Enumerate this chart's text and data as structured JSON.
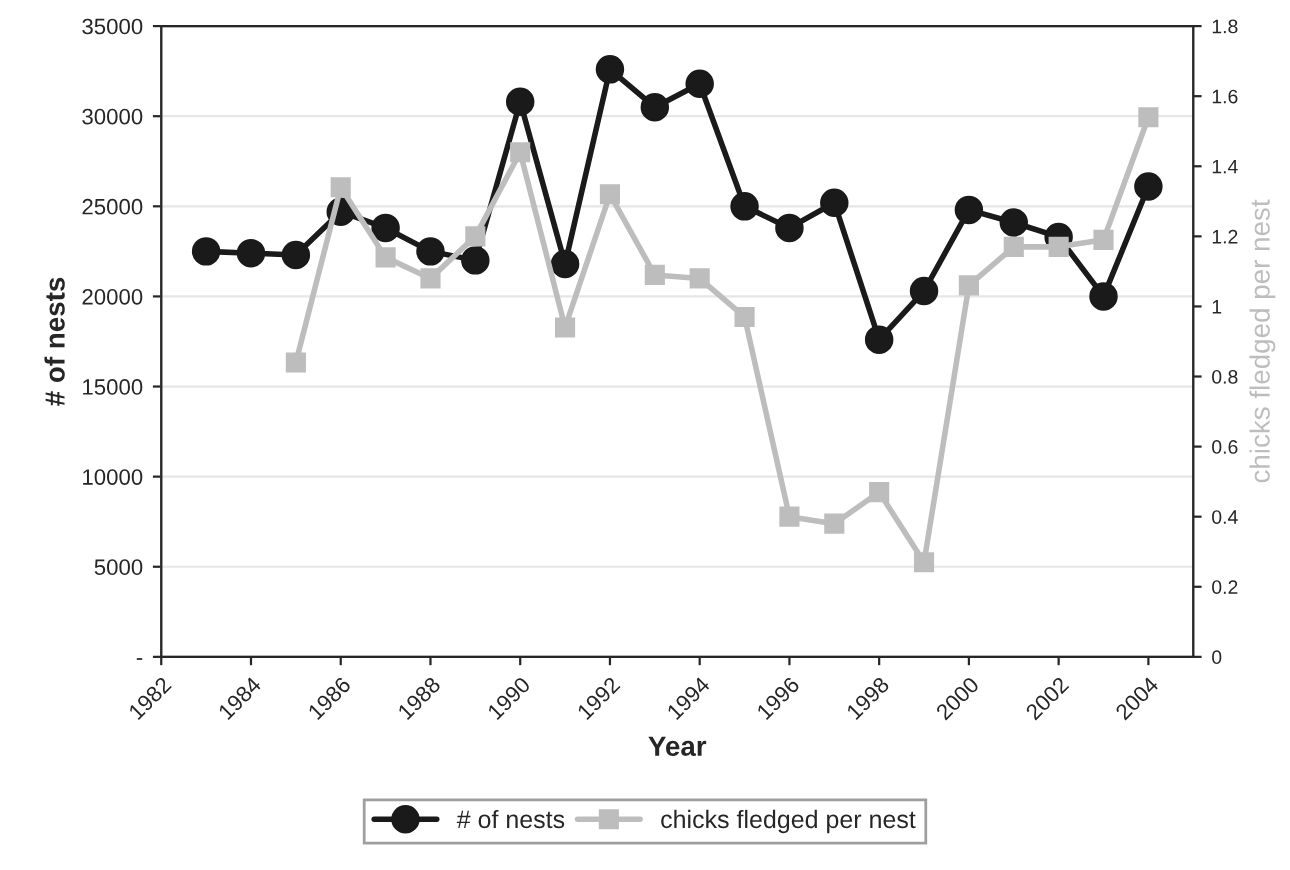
{
  "chart_data": {
    "type": "line",
    "xlabel": "Year",
    "ylabel": "# of nests",
    "y2label": "chicks fledged per nest",
    "x": [
      1983,
      1984,
      1985,
      1986,
      1987,
      1988,
      1989,
      1990,
      1991,
      1992,
      1993,
      1994,
      1995,
      1996,
      1997,
      1998,
      1999,
      2000,
      2001,
      2002,
      2003,
      2004
    ],
    "series": [
      {
        "name": "# of nests",
        "color": "#1a1a1a",
        "marker": "circle",
        "values": [
          22500,
          22400,
          22300,
          24700,
          23800,
          22500,
          22000,
          30800,
          21800,
          32600,
          30500,
          31800,
          25000,
          23800,
          25200,
          17600,
          20300,
          24800,
          24100,
          23300,
          20000,
          26100
        ]
      },
      {
        "name": "chicks fledged per nest",
        "color": "#bdbdbd",
        "marker": "square",
        "axis": "y2",
        "values": [
          null,
          null,
          0.84,
          1.34,
          1.14,
          1.08,
          1.2,
          1.44,
          0.94,
          1.32,
          1.09,
          1.08,
          0.97,
          0.4,
          0.38,
          0.47,
          0.27,
          1.06,
          1.17,
          1.17,
          1.19,
          1.54
        ]
      }
    ],
    "xlim": [
      1982,
      2005
    ],
    "xticks": [
      1982,
      1984,
      1986,
      1988,
      1990,
      1992,
      1994,
      1996,
      1998,
      2000,
      2002,
      2004
    ],
    "ylim": [
      0,
      35000
    ],
    "yticks": [
      {
        "value": 0,
        "label": "-"
      },
      5000,
      10000,
      15000,
      20000,
      25000,
      30000,
      35000
    ],
    "y2lim": [
      0,
      1.8
    ],
    "y2ticks": [
      0,
      0.2,
      0.4,
      0.6,
      0.8,
      1,
      1.2,
      1.4,
      1.6,
      1.8
    ],
    "grid": "y",
    "legend": "bottom",
    "line_style": "solid"
  }
}
